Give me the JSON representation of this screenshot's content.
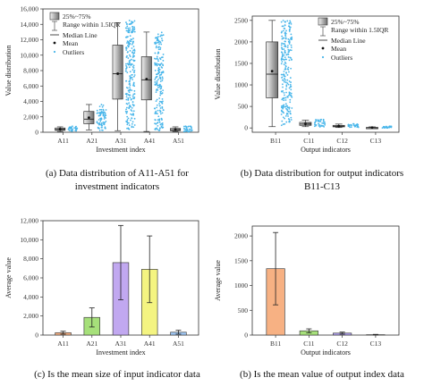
{
  "chart_data": [
    {
      "type": "box",
      "caption": [
        "(a) Data distribution of A11-A51 for",
        "investment indicators"
      ],
      "xlabel": "Investment index",
      "ylabel": "Value distribution",
      "categories": [
        "A11",
        "A21",
        "A31",
        "A41",
        "A51"
      ],
      "ylim": [
        0,
        16000
      ],
      "yticks": [
        0,
        2000,
        4000,
        6000,
        8000,
        10000,
        12000,
        14000,
        16000
      ],
      "ytick_labels": [
        "0",
        "2,000",
        "4,000",
        "6,000",
        "8,000",
        "10,000",
        "12,000",
        "14,000",
        "16,000"
      ],
      "boxes": [
        {
          "category": "A11",
          "whisker_low": 100,
          "q1": 250,
          "median": 350,
          "q3": 550,
          "whisker_high": 700,
          "mean": 380
        },
        {
          "category": "A21",
          "whisker_low": 300,
          "q1": 1100,
          "median": 1700,
          "q3": 2700,
          "whisker_high": 3600,
          "mean": 1900
        },
        {
          "category": "A31",
          "whisker_low": 200,
          "q1": 4300,
          "median": 7600,
          "q3": 11300,
          "whisker_high": 14200,
          "mean": 7600
        },
        {
          "category": "A41",
          "whisker_low": 100,
          "q1": 4200,
          "median": 6800,
          "q3": 9800,
          "whisker_high": 13000,
          "mean": 6900
        },
        {
          "category": "A51",
          "whisker_low": 100,
          "q1": 200,
          "median": 320,
          "q3": 500,
          "whisker_high": 700,
          "mean": 350
        }
      ],
      "outlier_range": [
        [
          50,
          800
        ],
        [
          200,
          3600
        ],
        [
          300,
          14600
        ],
        [
          200,
          13000
        ],
        [
          50,
          800
        ]
      ],
      "legend": {
        "box": "25%~75%",
        "range": "Range within 1.5IQR",
        "median": "Median Line",
        "mean": "Mean",
        "outliers": "Outliers"
      },
      "legend_position": "top-left"
    },
    {
      "type": "box",
      "caption": [
        "(b) Data distribution for output indicators",
        "B11-C13"
      ],
      "xlabel": "Output indicators",
      "ylabel": "Value distribution",
      "categories": [
        "B11",
        "C11",
        "C12",
        "C13"
      ],
      "ylim": [
        -100,
        2600
      ],
      "yticks": [
        0,
        500,
        1000,
        1500,
        2000,
        2500
      ],
      "ytick_labels": [
        "0",
        "500",
        "1000",
        "1500",
        "2000",
        "2500"
      ],
      "boxes": [
        {
          "category": "B11",
          "whisker_low": 30,
          "q1": 700,
          "median": 1250,
          "q3": 2000,
          "whisker_high": 2500,
          "mean": 1320
        },
        {
          "category": "C11",
          "whisker_low": 30,
          "q1": 60,
          "median": 90,
          "q3": 130,
          "whisker_high": 180,
          "mean": 95
        },
        {
          "category": "C12",
          "whisker_low": 10,
          "q1": 25,
          "median": 40,
          "q3": 60,
          "whisker_high": 90,
          "mean": 42
        },
        {
          "category": "C13",
          "whisker_low": 0,
          "q1": 3,
          "median": 6,
          "q3": 12,
          "whisker_high": 25,
          "mean": 8
        }
      ],
      "outlier_range": [
        [
          50,
          2500
        ],
        [
          20,
          200
        ],
        [
          10,
          100
        ],
        [
          0,
          40
        ]
      ],
      "legend": {
        "box": "25%~75%",
        "range": "Range within 1.5IQR",
        "median": "Median Line",
        "mean": "Mean",
        "outliers": "Outliers"
      },
      "legend_position": "top-right"
    },
    {
      "type": "bar",
      "caption": [
        "(c)  Is the mean size of input indicator data"
      ],
      "xlabel": "Investment index",
      "ylabel": "Average value",
      "categories": [
        "A11",
        "A21",
        "A31",
        "A41",
        "A51"
      ],
      "values": [
        250,
        1850,
        7600,
        6900,
        300
      ],
      "errors": [
        150,
        1000,
        3900,
        3500,
        200
      ],
      "colors": [
        "#f7b183",
        "#a6e07a",
        "#c1a8f0",
        "#f4f481",
        "#9ec6f3"
      ],
      "ylim": [
        0,
        12000
      ],
      "yticks": [
        0,
        2000,
        4000,
        6000,
        8000,
        10000,
        12000
      ],
      "ytick_labels": [
        "0",
        "2,000",
        "4,000",
        "6,000",
        "8,000",
        "10,000",
        "12,000"
      ]
    },
    {
      "type": "bar",
      "caption": [
        "(b)  Is the mean value of output index data"
      ],
      "xlabel": "Output indicators",
      "ylabel": "Average value",
      "categories": [
        "B11",
        "C11",
        "C12",
        "C13"
      ],
      "values": [
        1340,
        85,
        40,
        8
      ],
      "errors": [
        730,
        40,
        20,
        6
      ],
      "colors": [
        "#f7b183",
        "#a6e07a",
        "#b0a0f0",
        "#f4f481"
      ],
      "ylim": [
        0,
        2200
      ],
      "yticks": [
        0,
        500,
        1000,
        1500,
        2000
      ],
      "ytick_labels": [
        "0",
        "500",
        "1000",
        "1500",
        "2000"
      ]
    }
  ]
}
